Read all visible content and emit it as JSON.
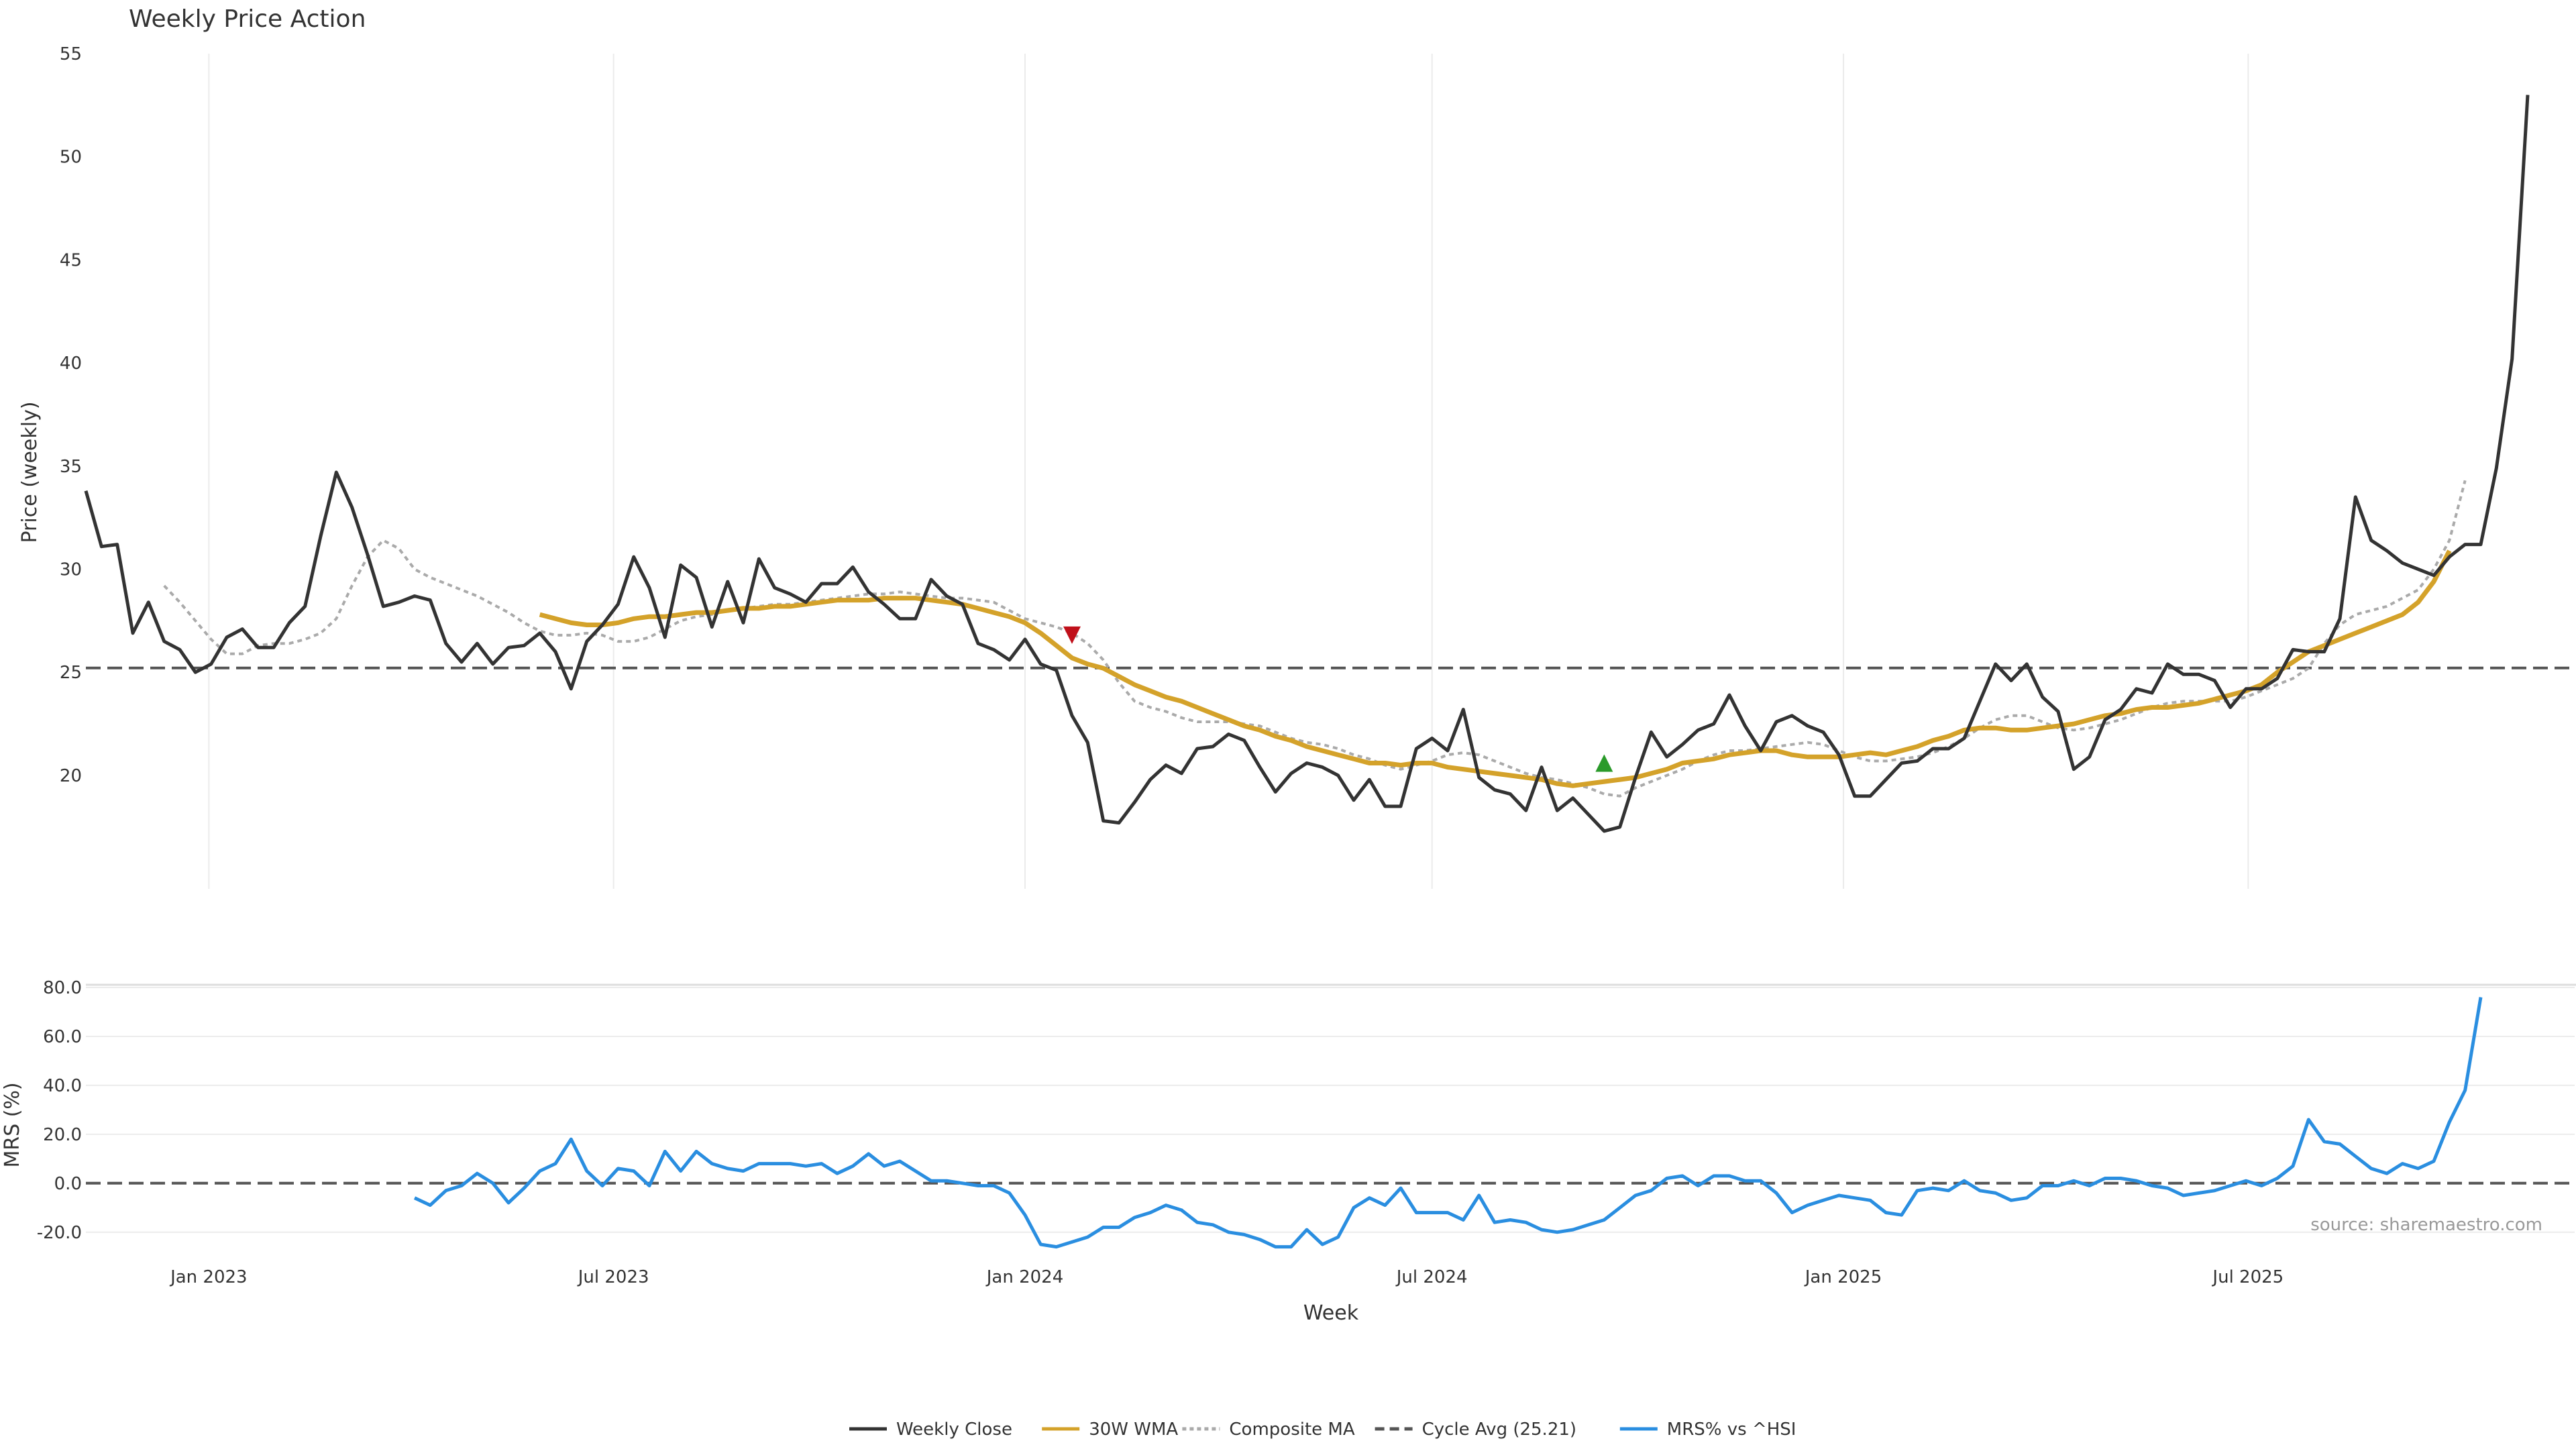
{
  "chart_data": [
    {
      "type": "line",
      "title": "Weekly Price Action",
      "ylabel": "Price (weekly)",
      "xlabel": "",
      "ylim": [
        14.5,
        55
      ],
      "yticks": [
        20,
        25,
        30,
        35,
        40,
        45,
        50,
        55
      ],
      "xlim": [
        "2022-11-07",
        "2025-11-24"
      ],
      "xticks": [
        {
          "date": "2023-01-01",
          "label": "Jan 2023"
        },
        {
          "date": "2023-07-01",
          "label": "Jul 2023"
        },
        {
          "date": "2024-01-01",
          "label": "Jan 2024"
        },
        {
          "date": "2024-07-01",
          "label": "Jul 2024"
        },
        {
          "date": "2025-01-01",
          "label": "Jan 2025"
        },
        {
          "date": "2025-07-01",
          "label": "Jul 2025"
        }
      ],
      "grid": "vertical",
      "hline": {
        "name": "Cycle Avg (25.21)",
        "y": 25.21,
        "color": "#555555",
        "style": "dashed"
      },
      "series": [
        {
          "name": "Weekly Close",
          "color": "#333333",
          "style": "solid",
          "start": "2022-11-07",
          "values": [
            33.8,
            31.1,
            31.2,
            26.9,
            28.4,
            26.5,
            26.1,
            25.0,
            25.4,
            26.7,
            27.1,
            26.2,
            26.2,
            27.4,
            28.2,
            31.6,
            34.7,
            33.0,
            30.7,
            28.2,
            28.4,
            28.7,
            28.5,
            26.4,
            25.5,
            26.4,
            25.4,
            26.2,
            26.3,
            26.9,
            26.0,
            24.2,
            26.5,
            27.3,
            28.3,
            30.6,
            29.1,
            26.7,
            30.2,
            29.6,
            27.2,
            29.4,
            27.4,
            30.5,
            29.1,
            28.8,
            28.4,
            29.3,
            29.3,
            30.1,
            28.9,
            28.3,
            27.6,
            27.6,
            29.5,
            28.7,
            28.3,
            26.4,
            26.1,
            25.6,
            26.6,
            25.4,
            25.1,
            22.9,
            21.6,
            17.8,
            17.7,
            18.7,
            19.8,
            20.5,
            20.1,
            21.3,
            21.4,
            22.0,
            21.7,
            20.4,
            19.2,
            20.1,
            20.6,
            20.4,
            20.0,
            18.8,
            19.8,
            18.5,
            18.5,
            21.3,
            21.8,
            21.2,
            23.2,
            19.9,
            19.3,
            19.1,
            18.3,
            20.4,
            18.3,
            18.9,
            18.1,
            17.3,
            17.5,
            19.9,
            22.1,
            20.9,
            21.5,
            22.2,
            22.5,
            23.9,
            22.4,
            21.2,
            22.6,
            22.9,
            22.4,
            22.1,
            21.0,
            19.0,
            19.0,
            19.8,
            20.6,
            20.7,
            21.3,
            21.3,
            21.8,
            23.6,
            25.4,
            24.6,
            25.4,
            23.8,
            23.1,
            20.3,
            20.9,
            22.7,
            23.2,
            24.2,
            24.0,
            25.4,
            24.9,
            24.9,
            24.6,
            23.3,
            24.2,
            24.2,
            24.7,
            26.1,
            26.0,
            26.0,
            27.6,
            33.5,
            31.4,
            30.9,
            30.3,
            30.0,
            29.7,
            30.6,
            31.2,
            31.2,
            34.9,
            40.2,
            53.0
          ]
        },
        {
          "name": "30W WMA",
          "color": "#d4a22a",
          "style": "solid",
          "start": "2023-05-29",
          "values": [
            27.8,
            27.6,
            27.4,
            27.3,
            27.3,
            27.4,
            27.6,
            27.7,
            27.7,
            27.8,
            27.9,
            27.9,
            28.0,
            28.1,
            28.1,
            28.2,
            28.2,
            28.3,
            28.4,
            28.5,
            28.5,
            28.5,
            28.6,
            28.6,
            28.6,
            28.5,
            28.4,
            28.3,
            28.1,
            27.9,
            27.7,
            27.4,
            26.9,
            26.3,
            25.7,
            25.4,
            25.2,
            24.8,
            24.4,
            24.1,
            23.8,
            23.6,
            23.3,
            23.0,
            22.7,
            22.4,
            22.2,
            21.9,
            21.7,
            21.4,
            21.2,
            21.0,
            20.8,
            20.6,
            20.6,
            20.5,
            20.6,
            20.6,
            20.4,
            20.3,
            20.2,
            20.1,
            20.0,
            19.9,
            19.8,
            19.6,
            19.5,
            19.6,
            19.7,
            19.8,
            19.9,
            20.1,
            20.3,
            20.6,
            20.7,
            20.8,
            21.0,
            21.1,
            21.2,
            21.2,
            21.0,
            20.9,
            20.9,
            20.9,
            21.0,
            21.1,
            21.0,
            21.2,
            21.4,
            21.7,
            21.9,
            22.2,
            22.3,
            22.3,
            22.2,
            22.2,
            22.3,
            22.4,
            22.5,
            22.7,
            22.9,
            23.0,
            23.2,
            23.3,
            23.3,
            23.4,
            23.5,
            23.7,
            23.9,
            24.1,
            24.4,
            25.0,
            25.5,
            26.0,
            26.3,
            26.6,
            26.9,
            27.2,
            27.5,
            27.8,
            28.4,
            29.4,
            30.9
          ]
        },
        {
          "name": "Composite MA",
          "color": "#aaaaaa",
          "style": "dotted",
          "start": "2022-12-12",
          "values": [
            29.2,
            28.4,
            27.5,
            26.6,
            25.9,
            25.9,
            26.3,
            26.4,
            26.4,
            26.6,
            26.9,
            27.6,
            29.2,
            30.6,
            31.4,
            31.0,
            30.0,
            29.6,
            29.3,
            29.0,
            28.7,
            28.3,
            27.9,
            27.4,
            27.0,
            26.8,
            26.8,
            26.9,
            26.8,
            26.5,
            26.5,
            26.7,
            27.1,
            27.5,
            27.7,
            27.8,
            28.0,
            28.1,
            28.2,
            28.3,
            28.3,
            28.4,
            28.5,
            28.6,
            28.7,
            28.8,
            28.8,
            28.9,
            28.8,
            28.7,
            28.6,
            28.6,
            28.5,
            28.4,
            28.0,
            27.6,
            27.4,
            27.2,
            26.9,
            26.4,
            25.6,
            24.5,
            23.6,
            23.3,
            23.1,
            22.8,
            22.6,
            22.6,
            22.6,
            22.5,
            22.4,
            22.1,
            21.8,
            21.6,
            21.5,
            21.3,
            21.0,
            20.8,
            20.5,
            20.3,
            20.5,
            20.7,
            21.0,
            21.1,
            21.0,
            20.7,
            20.4,
            20.1,
            19.9,
            19.8,
            19.6,
            19.4,
            19.1,
            19.0,
            19.4,
            19.7,
            20.0,
            20.3,
            20.7,
            21.0,
            21.2,
            21.2,
            21.3,
            21.4,
            21.5,
            21.6,
            21.5,
            21.2,
            20.9,
            20.7,
            20.7,
            20.8,
            20.9,
            21.1,
            21.4,
            21.8,
            22.3,
            22.7,
            22.9,
            22.9,
            22.6,
            22.3,
            22.2,
            22.3,
            22.5,
            22.7,
            23.0,
            23.3,
            23.5,
            23.6,
            23.6,
            23.6,
            23.6,
            23.8,
            24.1,
            24.4,
            24.7,
            25.2,
            26.4,
            27.3,
            27.8,
            28.0,
            28.2,
            28.6,
            29.0,
            30.0,
            31.4,
            34.3
          ]
        }
      ],
      "markers": [
        {
          "date": "2024-01-22",
          "y": 26.8,
          "symbol": "triangle-down",
          "color": "#c0101a"
        },
        {
          "date": "2024-09-16",
          "y": 20.6,
          "symbol": "triangle-up",
          "color": "#2a9a2a"
        }
      ]
    },
    {
      "type": "line",
      "title": "",
      "ylabel": "MRS (%)",
      "xlabel": "Week",
      "ylim": [
        -25,
        80
      ],
      "yticks": [
        -20,
        0,
        20,
        40,
        60,
        80
      ],
      "ytick_labels": [
        "-20.0",
        "0.0",
        "20.0",
        "40.0",
        "60.0",
        "80.0"
      ],
      "hline": {
        "y": 0,
        "color": "#555555",
        "style": "dashed"
      },
      "annotation": "source: sharemaestro.com",
      "series": [
        {
          "name": "MRS% vs ^HSI",
          "color": "#2a8ee0",
          "style": "solid",
          "start": "2023-04-03",
          "values": [
            -6,
            -9,
            -3,
            -1,
            4,
            0,
            -8,
            -2,
            5,
            8,
            18,
            5,
            -1,
            6,
            5,
            -1,
            13,
            5,
            13,
            8,
            6,
            5,
            8,
            8,
            8,
            7,
            8,
            4,
            7,
            12,
            7,
            9,
            5,
            1,
            1,
            0,
            -1,
            -1,
            -4,
            -13,
            -25,
            -26,
            -24,
            -22,
            -18,
            -18,
            -14,
            -12,
            -9,
            -11,
            -16,
            -17,
            -20,
            -21,
            -23,
            -26,
            -26,
            -19,
            -25,
            -22,
            -10,
            -6,
            -9,
            -2,
            -12,
            -12,
            -12,
            -15,
            -5,
            -16,
            -15,
            -16,
            -19,
            -20,
            -19,
            -17,
            -15,
            -10,
            -5,
            -3,
            2,
            3,
            -1,
            3,
            3,
            1,
            1,
            -4,
            -12,
            -9,
            -7,
            -5,
            -6,
            -7,
            -12,
            -13,
            -3,
            -2,
            -3,
            1,
            -3,
            -4,
            -7,
            -6,
            -1,
            -1,
            1,
            -1,
            2,
            2,
            1,
            -1,
            -2,
            -5,
            -4,
            -3,
            -1,
            1,
            -1,
            2,
            7,
            26,
            17,
            16,
            11,
            6,
            4,
            8,
            6,
            9,
            25,
            38,
            76
          ]
        }
      ]
    }
  ],
  "legend": {
    "placement": "bottom-center",
    "items": [
      {
        "label": "Weekly Close",
        "color": "#333333",
        "style": "solid"
      },
      {
        "label": "30W WMA",
        "color": "#d4a22a",
        "style": "solid"
      },
      {
        "label": "Composite MA",
        "color": "#aaaaaa",
        "style": "dotted"
      },
      {
        "label": "Cycle Avg (25.21)",
        "color": "#555555",
        "style": "dashed"
      },
      {
        "label": "MRS% vs ^HSI",
        "color": "#2a8ee0",
        "style": "solid"
      }
    ]
  }
}
